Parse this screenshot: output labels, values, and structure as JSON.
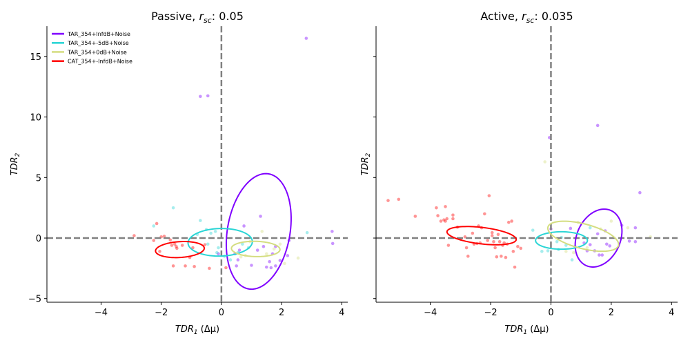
{
  "chart_data": [
    {
      "type": "scatter",
      "title": "Passive, r_sc: 0.05",
      "title_prefix": "Passive, ",
      "title_r": "r",
      "title_sub": "sc",
      "title_suffix": ": 0.05",
      "xlabel_main": "TDR",
      "xlabel_sub": "1",
      "xlabel_suffix": " (Δμ)",
      "ylabel_main": "TDR",
      "ylabel_sub": "2",
      "xlim": [
        -5.8,
        4.2
      ],
      "ylim": [
        -5.3,
        17.5
      ],
      "xticks": [
        -4,
        -2,
        0,
        2,
        4
      ],
      "yticks": [
        -5,
        0,
        5,
        10,
        15
      ],
      "xtick_labels": [
        "−4",
        "−2",
        "0",
        "2",
        "4"
      ],
      "ytick_labels": [
        "−5",
        "0",
        "5",
        "10",
        "15"
      ],
      "reference_lines": {
        "x": 0,
        "y": 0
      },
      "legend": {
        "placement": "top-left",
        "entries": [
          {
            "label": "TAR_354+InfdB+Noise",
            "color": "#7f00ff"
          },
          {
            "label": "TAR_354+-5dB+Noise",
            "color": "#2ad5d5"
          },
          {
            "label": "TAR_354+0dB+Noise",
            "color": "#d4dd80"
          },
          {
            "label": "CAT_354+-InfdB+Noise",
            "color": "#ff0000"
          }
        ]
      },
      "series": [
        {
          "name": "TAR_354+InfdB+Noise",
          "color": "#7f00ff",
          "ellipse": {
            "cx": 1.24,
            "cy": 0.55,
            "rx": 1.05,
            "ry": 4.78,
            "angle": -3
          },
          "points": [
            [
              -0.7,
              11.7
            ],
            [
              -0.45,
              11.75
            ],
            [
              2.82,
              16.5
            ],
            [
              1.3,
              1.8
            ],
            [
              0.75,
              1.0
            ],
            [
              1.4,
              -0.7
            ],
            [
              1.6,
              -1.95
            ],
            [
              1.7,
              -1.3
            ],
            [
              1.8,
              -2.3
            ],
            [
              1.5,
              -2.4
            ],
            [
              1.95,
              -1.85
            ],
            [
              2.2,
              -1.45
            ],
            [
              0.55,
              -1.8
            ],
            [
              1.0,
              -2.25
            ],
            [
              0.45,
              -1.3
            ],
            [
              0.6,
              -1.0
            ],
            [
              2.25,
              -0.2
            ],
            [
              3.68,
              0.55
            ],
            [
              3.7,
              -0.45
            ],
            [
              1.2,
              -1.0
            ],
            [
              0.5,
              -2.3
            ],
            [
              1.65,
              -2.45
            ],
            [
              -0.1,
              -1.3
            ],
            [
              1.8,
              -0.7
            ]
          ]
        },
        {
          "name": "TAR_354+-5dB+Noise",
          "color": "#2ad5d5",
          "ellipse": {
            "cx": -0.04,
            "cy": -0.35,
            "rx": 1.06,
            "ry": 1.15,
            "angle": -18
          },
          "points": [
            [
              -1.6,
              2.5
            ],
            [
              -2.25,
              1.0
            ],
            [
              -0.7,
              1.45
            ],
            [
              -0.5,
              0.7
            ],
            [
              -0.35,
              0.4
            ],
            [
              -0.8,
              0.3
            ],
            [
              -0.45,
              -0.5
            ],
            [
              -0.15,
              -1.2
            ],
            [
              0.1,
              -1.5
            ],
            [
              0.3,
              -1.8
            ],
            [
              0.7,
              -0.5
            ],
            [
              -0.1,
              -0.8
            ],
            [
              2.85,
              0.45
            ],
            [
              0.55,
              -1.2
            ],
            [
              0.9,
              -0.8
            ],
            [
              -0.2,
              0.55
            ]
          ]
        },
        {
          "name": "TAR_354+0dB+Noise",
          "color": "#d4dd80",
          "ellipse": {
            "cx": 1.14,
            "cy": -0.9,
            "rx": 0.81,
            "ry": 0.63,
            "angle": -8
          },
          "points": [
            [
              1.35,
              0.55
            ],
            [
              1.5,
              -1.3
            ],
            [
              2.1,
              -2.1
            ],
            [
              2.55,
              -1.65
            ],
            [
              1.95,
              -0.5
            ],
            [
              0.8,
              -1.45
            ],
            [
              0.95,
              -0.3
            ],
            [
              0.65,
              -1.55
            ],
            [
              1.75,
              -0.9
            ]
          ]
        },
        {
          "name": "CAT_354+-InfdB+Noise",
          "color": "#ff0000",
          "ellipse": {
            "cx": -1.38,
            "cy": -0.95,
            "rx": 0.83,
            "ry": 0.64,
            "angle": 20
          },
          "points": [
            [
              -2.9,
              0.2
            ],
            [
              -2.15,
              1.2
            ],
            [
              -2.0,
              0.1
            ],
            [
              -1.9,
              0.15
            ],
            [
              -1.7,
              -0.15
            ],
            [
              -1.55,
              -0.5
            ],
            [
              -1.5,
              -0.7
            ],
            [
              -1.48,
              -0.85
            ],
            [
              -1.65,
              -0.6
            ],
            [
              -1.6,
              -2.3
            ],
            [
              -1.2,
              -2.3
            ],
            [
              -0.9,
              -2.35
            ],
            [
              -0.4,
              -2.5
            ],
            [
              -2.05,
              -1.1
            ],
            [
              -0.55,
              -0.55
            ],
            [
              -0.95,
              -0.8
            ],
            [
              0.15,
              -2.45
            ],
            [
              -1.3,
              -0.6
            ],
            [
              -2.25,
              -0.2
            ],
            [
              -1.05,
              -1.6
            ]
          ]
        }
      ]
    },
    {
      "type": "scatter",
      "title": "Active, r_sc: 0.035",
      "title_prefix": "Active, ",
      "title_r": "r",
      "title_sub": "sc",
      "title_suffix": ": 0.035",
      "xlabel_main": "TDR",
      "xlabel_sub": "1",
      "xlabel_suffix": " (Δμ)",
      "ylabel_main": "TDR",
      "ylabel_sub": "2",
      "xlim": [
        -5.8,
        4.2
      ],
      "ylim": [
        -5.3,
        17.5
      ],
      "xticks": [
        -4,
        -2,
        0,
        2,
        4
      ],
      "yticks": [
        -5,
        0,
        5,
        10,
        15
      ],
      "xtick_labels": [
        "−4",
        "−2",
        "0",
        "2",
        "4"
      ],
      "ytick_labels": [
        "−5",
        "0",
        "5",
        "10",
        "15"
      ],
      "reference_lines": {
        "x": 0,
        "y": 0
      },
      "series": [
        {
          "name": "TAR_354+InfdB+Noise",
          "color": "#7f00ff",
          "ellipse": {
            "cx": 1.58,
            "cy": 0.0,
            "rx": 0.75,
            "ry": 2.4,
            "angle": -5
          },
          "points": [
            [
              -0.05,
              8.3
            ],
            [
              1.55,
              9.3
            ],
            [
              2.95,
              3.75
            ],
            [
              2.35,
              1.05
            ],
            [
              2.8,
              0.85
            ],
            [
              2.6,
              -0.25
            ],
            [
              2.8,
              -0.3
            ],
            [
              1.95,
              -0.65
            ],
            [
              1.6,
              -1.4
            ],
            [
              1.7,
              -1.4
            ],
            [
              1.45,
              -1.05
            ],
            [
              1.1,
              -0.4
            ],
            [
              1.3,
              -0.55
            ],
            [
              0.65,
              0.8
            ],
            [
              1.8,
              0.6
            ],
            [
              1.55,
              0.35
            ],
            [
              1.85,
              -0.5
            ],
            [
              1.2,
              -1.05
            ],
            [
              0.0,
              0.75
            ]
          ]
        },
        {
          "name": "TAR_354+-5dB+Noise",
          "color": "#2ad5d5",
          "ellipse": {
            "cx": 0.35,
            "cy": -0.2,
            "rx": 0.86,
            "ry": 0.72,
            "angle": 0
          },
          "points": [
            [
              -0.6,
              0.65
            ],
            [
              -0.3,
              -1.1
            ],
            [
              -0.1,
              -1.05
            ],
            [
              0.2,
              -0.3
            ],
            [
              0.5,
              -0.6
            ],
            [
              0.7,
              -1.8
            ],
            [
              1.3,
              0.85
            ],
            [
              0.35,
              0.05
            ],
            [
              0.8,
              -0.7
            ],
            [
              0.25,
              -0.95
            ]
          ]
        },
        {
          "name": "TAR_354+0dB+Noise",
          "color": "#d4dd80",
          "ellipse": {
            "cx": 1.07,
            "cy": 0.15,
            "rx": 0.82,
            "ry": 1.5,
            "angle": 42
          },
          "points": [
            [
              -0.2,
              6.3
            ],
            [
              2.55,
              0.85
            ],
            [
              3.3,
              0.1
            ],
            [
              0.9,
              1.3
            ],
            [
              1.65,
              0.75
            ],
            [
              0.5,
              -1.1
            ],
            [
              1.2,
              -0.8
            ],
            [
              0.75,
              -1.2
            ],
            [
              2.0,
              1.4
            ]
          ]
        },
        {
          "name": "CAT_354+-InfdB+Noise",
          "color": "#ff0000",
          "ellipse": {
            "cx": -2.3,
            "cy": 0.2,
            "rx": 1.21,
            "ry": 0.65,
            "angle": -22
          },
          "points": [
            [
              -5.4,
              3.1
            ],
            [
              -5.05,
              3.2
            ],
            [
              -4.5,
              1.8
            ],
            [
              -3.8,
              2.5
            ],
            [
              -3.75,
              1.85
            ],
            [
              -3.5,
              2.6
            ],
            [
              -3.65,
              1.4
            ],
            [
              -3.55,
              1.5
            ],
            [
              -3.45,
              1.6
            ],
            [
              -3.4,
              -0.6
            ],
            [
              -3.25,
              1.9
            ],
            [
              -3.0,
              -0.1
            ],
            [
              -2.8,
              -0.8
            ],
            [
              -2.75,
              -1.5
            ],
            [
              -2.6,
              0.4
            ],
            [
              -2.55,
              -0.5
            ],
            [
              -2.45,
              -0.45
            ],
            [
              -2.2,
              2.0
            ],
            [
              -2.05,
              3.5
            ],
            [
              -1.95,
              0.45
            ],
            [
              -1.9,
              -0.3
            ],
            [
              -1.85,
              -0.8
            ],
            [
              -1.8,
              -1.55
            ],
            [
              -1.65,
              -1.5
            ],
            [
              -1.55,
              -0.4
            ],
            [
              -1.5,
              -1.6
            ],
            [
              -1.45,
              -0.5
            ],
            [
              -1.4,
              1.3
            ],
            [
              -1.3,
              1.4
            ],
            [
              -1.25,
              -1.1
            ],
            [
              -1.2,
              -2.4
            ],
            [
              -1.1,
              -0.7
            ],
            [
              -1.0,
              -0.85
            ],
            [
              -2.1,
              -0.2
            ],
            [
              -2.3,
              0.85
            ],
            [
              -2.35,
              -0.4
            ],
            [
              -2.4,
              1.0
            ],
            [
              -1.75,
              0.3
            ],
            [
              -1.6,
              -0.6
            ],
            [
              -2.85,
              0.1
            ],
            [
              -3.1,
              0.9
            ],
            [
              -3.25,
              1.6
            ],
            [
              -3.5,
              1.4
            ],
            [
              -1.95,
              0.2
            ],
            [
              -1.7,
              -0.3
            ]
          ]
        }
      ]
    }
  ]
}
